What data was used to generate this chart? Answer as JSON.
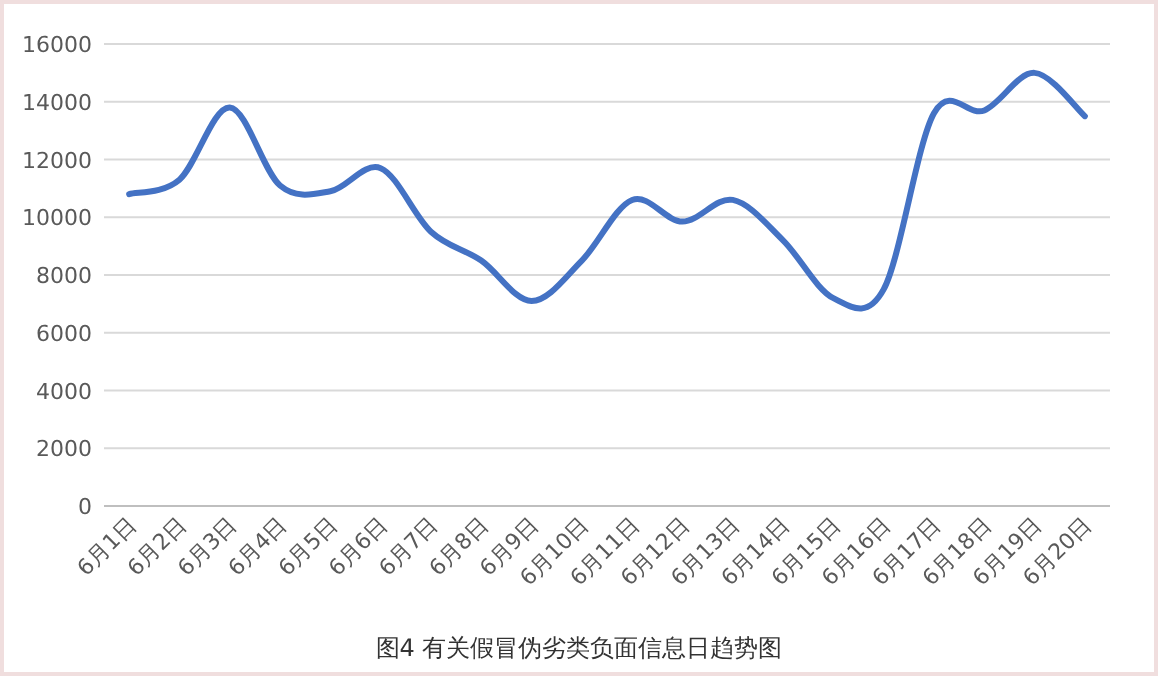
{
  "chart_data": {
    "type": "line",
    "title": "图4 有关假冒伪劣类负面信息日趋势图",
    "categories": [
      "6月1日",
      "6月2日",
      "6月3日",
      "6月4日",
      "6月5日",
      "6月6日",
      "6月7日",
      "6月8日",
      "6月9日",
      "6月10日",
      "6月11日",
      "6月12日",
      "6月13日",
      "6月14日",
      "6月15日",
      "6月16日",
      "6月17日",
      "6月18日",
      "6月19日",
      "6月20日"
    ],
    "series": [
      {
        "color": "#4472c4",
        "values": [
          10800,
          11300,
          13800,
          11100,
          10900,
          11700,
          9500,
          8500,
          7100,
          8500,
          10600,
          9850,
          10600,
          9200,
          7200,
          7500,
          13600,
          13700,
          15000,
          13500
        ]
      }
    ],
    "ylim": [
      0,
      16000
    ],
    "yticks": [
      0,
      2000,
      4000,
      6000,
      8000,
      10000,
      12000,
      14000,
      16000
    ],
    "grid": "y",
    "marker": "none",
    "line_style": "solid"
  }
}
